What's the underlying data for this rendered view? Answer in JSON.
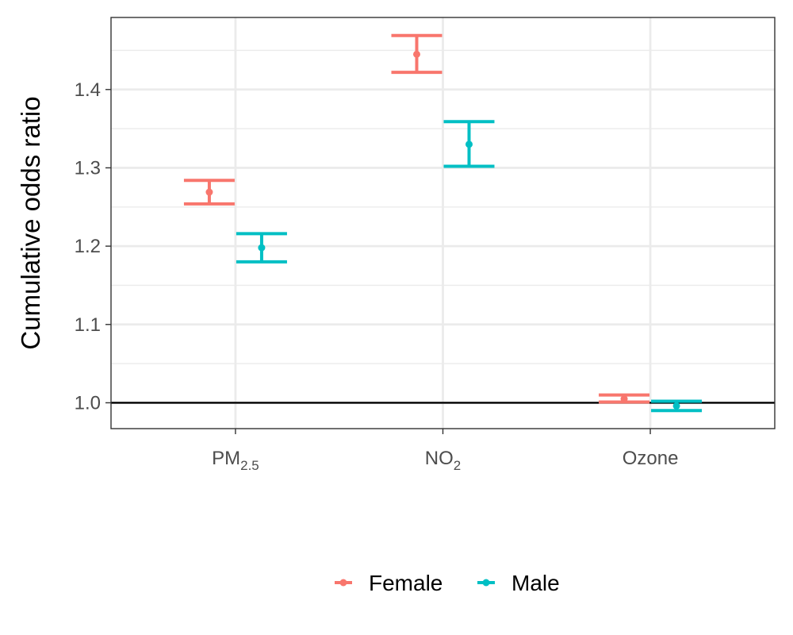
{
  "chart_data": {
    "type": "errorbar",
    "title": "",
    "xlabel": "",
    "ylabel": "Cumulative odds ratio",
    "ylim": [
      0.967,
      1.492
    ],
    "yticks": [
      1.0,
      1.1,
      1.2,
      1.3,
      1.4
    ],
    "ytick_labels": [
      "1.0",
      "1.1",
      "1.2",
      "1.3",
      "1.4"
    ],
    "reference_line": 1.0,
    "grid": true,
    "legend_position": "bottom",
    "categories": [
      {
        "main": "PM",
        "sub": "2.5"
      },
      {
        "main": "NO",
        "sub": "2"
      },
      {
        "main": "Ozone",
        "sub": ""
      }
    ],
    "series": [
      {
        "name": "Female",
        "color": "#F8766D",
        "estimate": [
          1.269,
          1.445,
          1.005
        ],
        "lower": [
          1.254,
          1.422,
          1.001
        ],
        "upper": [
          1.284,
          1.469,
          1.01
        ]
      },
      {
        "name": "Male",
        "color": "#00BFC4",
        "estimate": [
          1.198,
          1.33,
          0.996
        ],
        "lower": [
          1.18,
          1.302,
          0.99
        ],
        "upper": [
          1.216,
          1.359,
          1.002
        ]
      }
    ]
  }
}
